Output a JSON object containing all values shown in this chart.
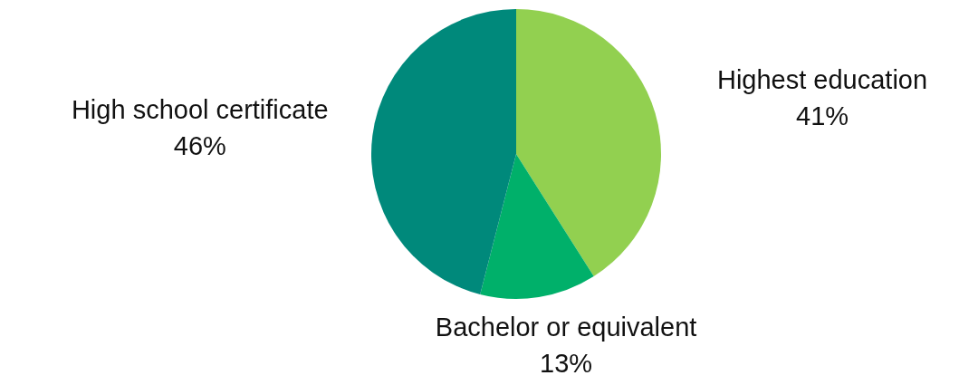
{
  "chart_data": {
    "type": "pie",
    "categories": [
      "Highest education",
      "Bachelor or equivalent",
      "High school certificate"
    ],
    "values": [
      41,
      13,
      46
    ],
    "colors": [
      "#92d050",
      "#00b06a",
      "#00897b"
    ],
    "value_labels": [
      "41%",
      "13%",
      "46%"
    ],
    "legend": false
  }
}
